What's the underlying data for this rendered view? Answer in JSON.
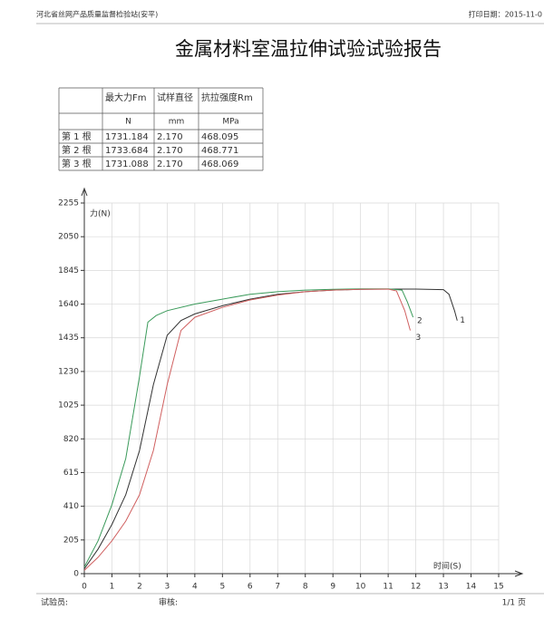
{
  "header": {
    "org": "河北省丝网产品质量监督检验站(安平)",
    "print_date": "打印日期：2015-11-0"
  },
  "title": "金属材料室温拉伸试验试验报告",
  "table": {
    "header": [
      "",
      "最大力Fm",
      "试样直径",
      "抗拉强度Rm"
    ],
    "units": [
      "",
      "N",
      "mm",
      "MPa"
    ],
    "rows": [
      [
        "第 1 根",
        "1731.184",
        "2.170",
        "468.095"
      ],
      [
        "第 2 根",
        "1733.684",
        "2.170",
        "468.771"
      ],
      [
        "第 3 根",
        "1731.088",
        "2.170",
        "468.069"
      ]
    ]
  },
  "chart_data": {
    "type": "line",
    "y_label": "力(N)",
    "x_label": "时间(S)",
    "xlim": [
      0,
      15
    ],
    "xticks": [
      0,
      1,
      2,
      3,
      4,
      5,
      6,
      7,
      8,
      9,
      10,
      11,
      12,
      13,
      14,
      15
    ],
    "ylim": [
      0,
      2255
    ],
    "yticks": [
      0,
      205,
      410,
      615,
      820,
      1025,
      1230,
      1435,
      1640,
      1845,
      2050,
      2255
    ],
    "grid": true,
    "series": [
      {
        "name": "1",
        "color": "#333333",
        "x": [
          0,
          0.5,
          1,
          1.5,
          2,
          2.5,
          3,
          3.5,
          4,
          5,
          6,
          7,
          8,
          9,
          10,
          11,
          12,
          13,
          13.2,
          13.4,
          13.5
        ],
        "values": [
          30,
          150,
          300,
          480,
          750,
          1150,
          1450,
          1540,
          1580,
          1630,
          1670,
          1700,
          1715,
          1725,
          1730,
          1731,
          1731,
          1728,
          1700,
          1600,
          1540
        ]
      },
      {
        "name": "2",
        "color": "#3a9a5a",
        "x": [
          0,
          0.5,
          1,
          1.5,
          2,
          2.3,
          2.6,
          3,
          4,
          5,
          6,
          7,
          8,
          9,
          10,
          11,
          11.5,
          11.7,
          11.9
        ],
        "values": [
          40,
          200,
          420,
          700,
          1200,
          1530,
          1570,
          1600,
          1640,
          1670,
          1700,
          1715,
          1725,
          1730,
          1733,
          1733,
          1725,
          1650,
          1560
        ]
      },
      {
        "name": "3",
        "color": "#d06060",
        "x": [
          0,
          0.5,
          1,
          1.5,
          2,
          2.5,
          3,
          3.5,
          4,
          5,
          6,
          7,
          8,
          9,
          10,
          11,
          11.3,
          11.6,
          11.8
        ],
        "values": [
          20,
          100,
          200,
          320,
          480,
          750,
          1150,
          1480,
          1560,
          1620,
          1665,
          1695,
          1715,
          1725,
          1730,
          1731,
          1720,
          1600,
          1480
        ]
      }
    ]
  },
  "footer": {
    "tester": "试验员:",
    "reviewer": "审核:",
    "page": "1/1 页"
  }
}
